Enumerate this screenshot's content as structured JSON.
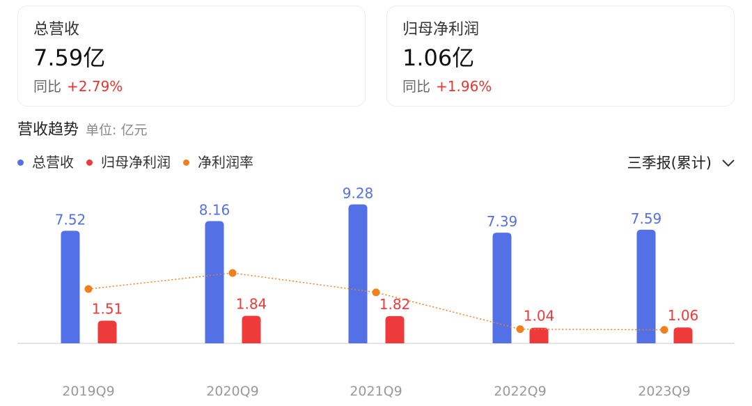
{
  "cards": [
    {
      "label": "总营收",
      "value": "7.59亿",
      "yoy_label": "同比",
      "yoy_value": "+2.79%"
    },
    {
      "label": "归母净利润",
      "value": "1.06亿",
      "yoy_label": "同比",
      "yoy_value": "+1.96%"
    }
  ],
  "section": {
    "title": "营收趋势",
    "unit": "单位: 亿元"
  },
  "period_select": {
    "selected": "三季报(累计)"
  },
  "colors": {
    "revenue": "#5470e6",
    "profit": "#ee3a3a",
    "margin": "#f07f1e",
    "positive": "#e8362e"
  },
  "chart_data": {
    "type": "bar",
    "categories": [
      "2019Q9",
      "2020Q9",
      "2021Q9",
      "2022Q9",
      "2023Q9"
    ],
    "series": [
      {
        "name": "总营收",
        "type": "bar",
        "values": [
          7.52,
          8.16,
          9.28,
          7.39,
          7.59
        ]
      },
      {
        "name": "归母净利润",
        "type": "bar",
        "values": [
          1.51,
          1.84,
          1.82,
          1.04,
          1.06
        ]
      },
      {
        "name": "净利润率",
        "type": "line",
        "values": [
          20.1,
          22.5,
          19.6,
          14.1,
          14.0
        ],
        "unit": "%"
      }
    ],
    "grid": false,
    "legend_position": "top-left"
  }
}
